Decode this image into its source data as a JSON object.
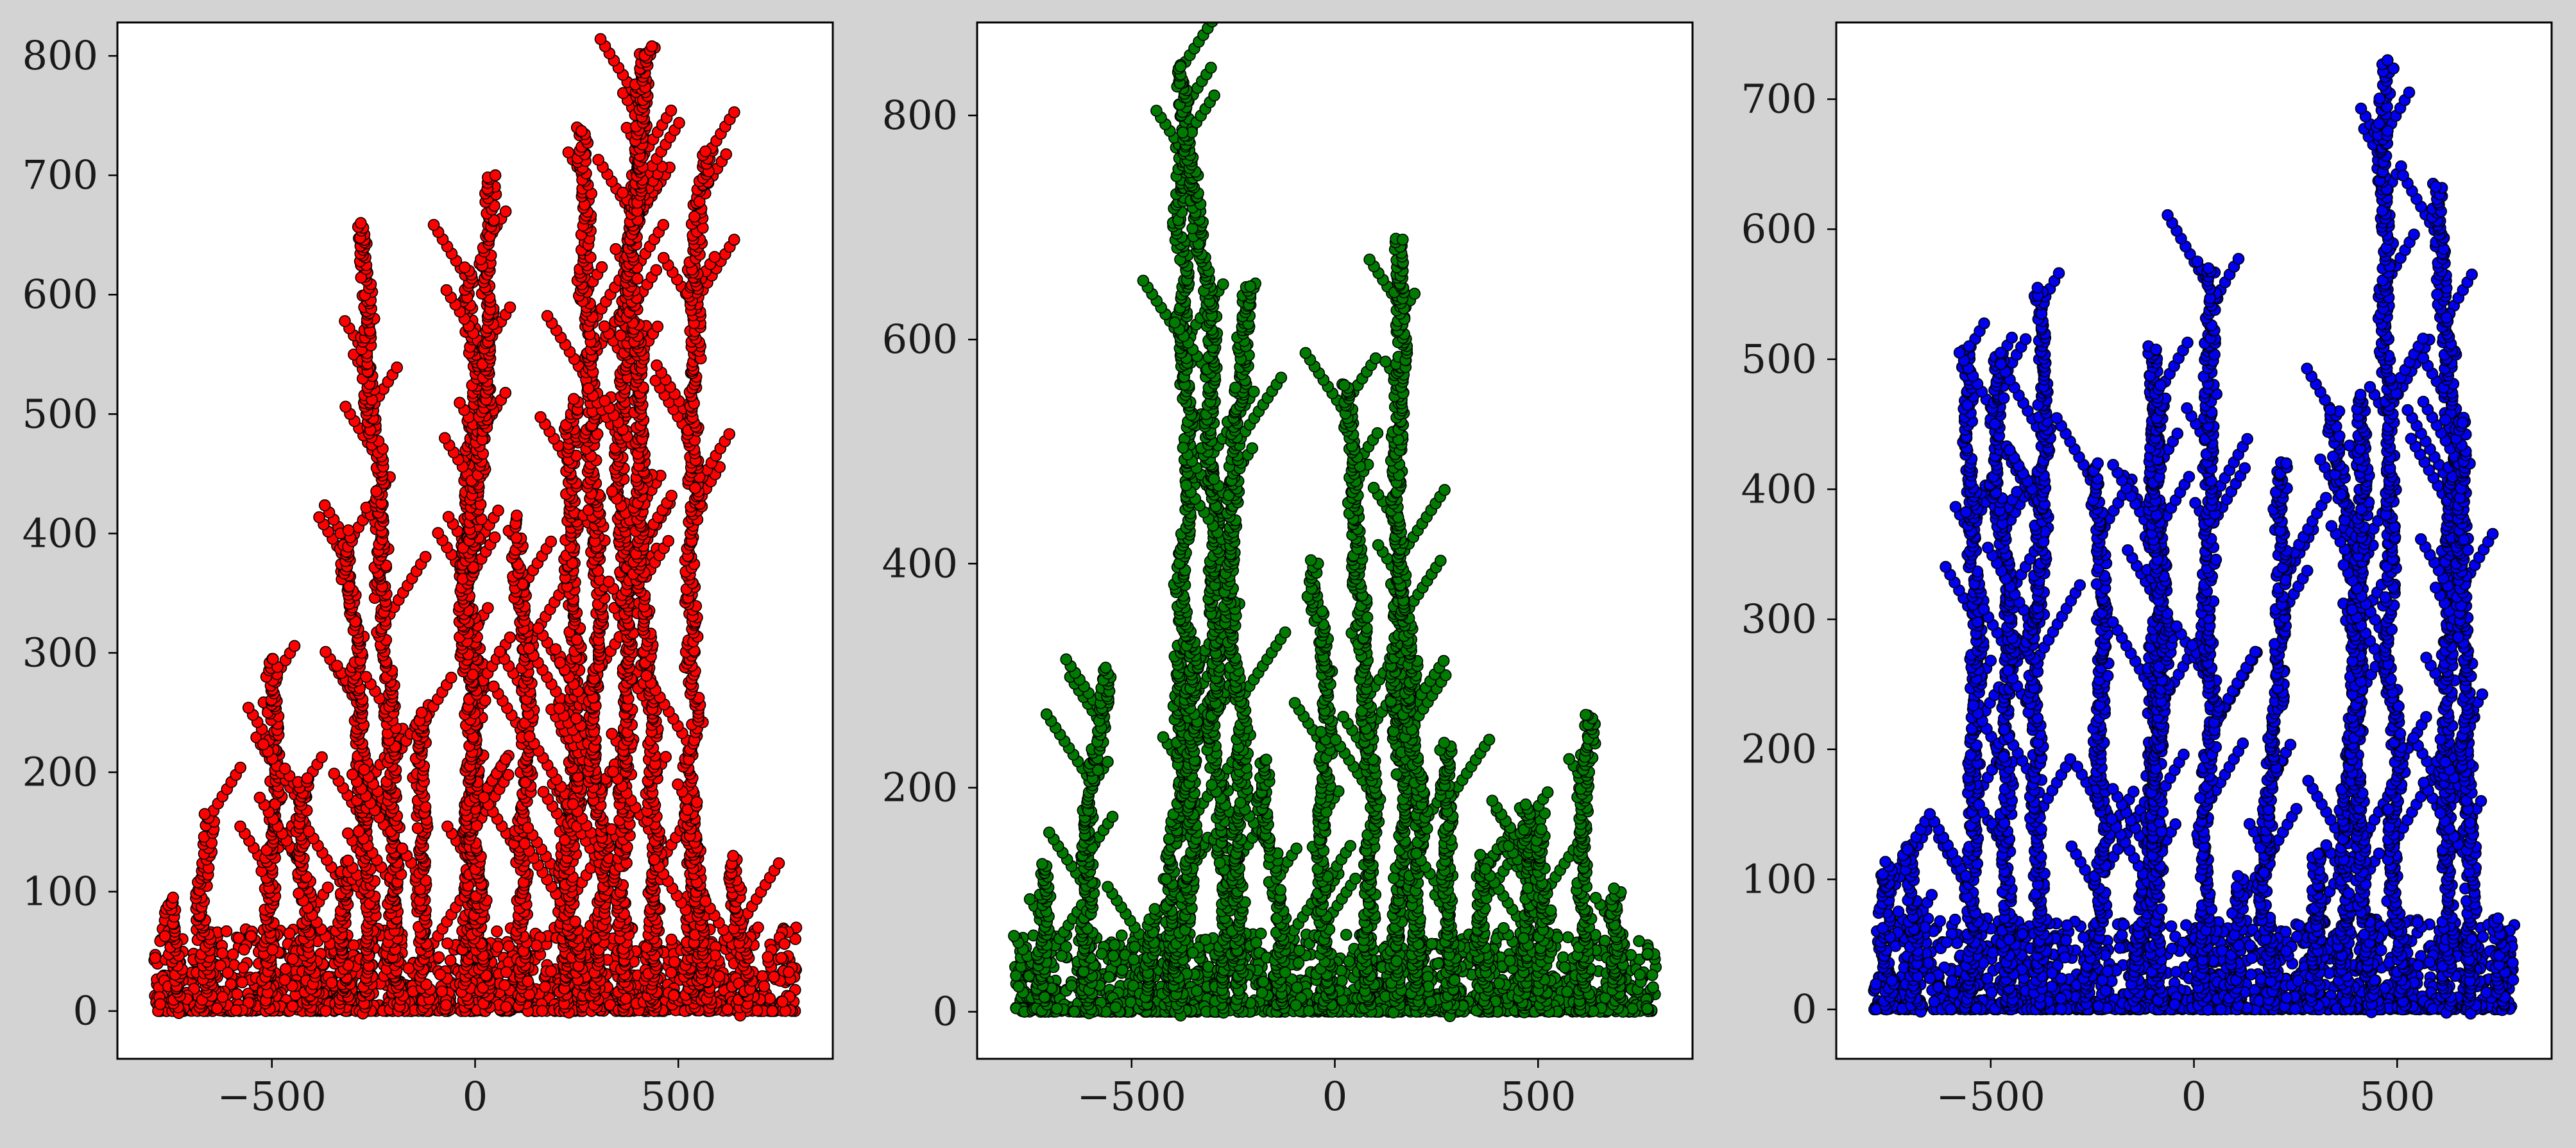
{
  "figure": {
    "background": "#d3d3d3"
  },
  "chart_data": [
    {
      "type": "scatter",
      "title": "",
      "xlabel": "",
      "ylabel": "",
      "xlim": [
        -880,
        880
      ],
      "ylim": [
        -40,
        828
      ],
      "xticks": [
        -500,
        0,
        500
      ],
      "xtick_labels": [
        "−500",
        "0",
        "500"
      ],
      "yticks": [
        0,
        100,
        200,
        300,
        400,
        500,
        600,
        700,
        800
      ],
      "ytick_labels": [
        "0",
        "100",
        "200",
        "300",
        "400",
        "500",
        "600",
        "700",
        "800"
      ],
      "grid": false,
      "legend": "none",
      "marker_color": "#ff0000",
      "edge_color": "#000000",
      "branches": [
        {
          "x": -735,
          "top": 95
        },
        {
          "x": -665,
          "top": 165
        },
        {
          "x": -505,
          "top": 295
        },
        {
          "x": -420,
          "top": 195
        },
        {
          "x": -320,
          "top": 125
        },
        {
          "x": -280,
          "top": 400
        },
        {
          "x": -190,
          "top": 660
        },
        {
          "x": -120,
          "top": 250
        },
        {
          "x": -20,
          "top": 620
        },
        {
          "x": 30,
          "top": 700
        },
        {
          "x": 120,
          "top": 415
        },
        {
          "x": 230,
          "top": 195
        },
        {
          "x": 270,
          "top": 510
        },
        {
          "x": 290,
          "top": 740
        },
        {
          "x": 370,
          "top": 780
        },
        {
          "x": 440,
          "top": 808
        },
        {
          "x": 530,
          "top": 720
        },
        {
          "x": 565,
          "top": 175
        },
        {
          "x": 660,
          "top": 130
        }
      ]
    },
    {
      "type": "scatter",
      "title": "",
      "xlabel": "",
      "ylabel": "",
      "xlim": [
        -880,
        880
      ],
      "ylim": [
        -42,
        883
      ],
      "xticks": [
        -500,
        0,
        500
      ],
      "xtick_labels": [
        "−500",
        "0",
        "500"
      ],
      "yticks": [
        0,
        200,
        400,
        600,
        800
      ],
      "ytick_labels": [
        "0",
        "200",
        "400",
        "600",
        "800"
      ],
      "grid": false,
      "legend": "none",
      "marker_color": "#007a00",
      "edge_color": "#000000",
      "branches": [
        {
          "x": -730,
          "top": 130
        },
        {
          "x": -610,
          "top": 305
        },
        {
          "x": -470,
          "top": 90
        },
        {
          "x": -420,
          "top": 330
        },
        {
          "x": -380,
          "top": 845
        },
        {
          "x": -280,
          "top": 785
        },
        {
          "x": -230,
          "top": 650
        },
        {
          "x": -140,
          "top": 225
        },
        {
          "x": -20,
          "top": 400
        },
        {
          "x": 70,
          "top": 560
        },
        {
          "x": 150,
          "top": 385
        },
        {
          "x": 210,
          "top": 690
        },
        {
          "x": 290,
          "top": 240
        },
        {
          "x": 380,
          "top": 140
        },
        {
          "x": 460,
          "top": 185
        },
        {
          "x": 520,
          "top": 160
        },
        {
          "x": 600,
          "top": 265
        },
        {
          "x": 700,
          "top": 110
        }
      ]
    },
    {
      "type": "scatter",
      "title": "",
      "xlabel": "",
      "ylabel": "",
      "xlim": [
        -880,
        880
      ],
      "ylim": [
        -38,
        759
      ],
      "xticks": [
        -500,
        0,
        500
      ],
      "xtick_labels": [
        "−500",
        "0",
        "500"
      ],
      "yticks": [
        0,
        100,
        200,
        300,
        400,
        500,
        600,
        700
      ],
      "ytick_labels": [
        "0",
        "100",
        "200",
        "300",
        "400",
        "500",
        "600",
        "700"
      ],
      "grid": false,
      "legend": "none",
      "marker_color": "#0000ee",
      "edge_color": "#000000",
      "branches": [
        {
          "x": -760,
          "top": 110
        },
        {
          "x": -680,
          "top": 125
        },
        {
          "x": -560,
          "top": 510
        },
        {
          "x": -450,
          "top": 505
        },
        {
          "x": -380,
          "top": 555
        },
        {
          "x": -270,
          "top": 420
        },
        {
          "x": -150,
          "top": 510
        },
        {
          "x": -80,
          "top": 480
        },
        {
          "x": 20,
          "top": 570
        },
        {
          "x": 100,
          "top": 100
        },
        {
          "x": 190,
          "top": 420
        },
        {
          "x": 300,
          "top": 120
        },
        {
          "x": 380,
          "top": 460
        },
        {
          "x": 450,
          "top": 470
        },
        {
          "x": 520,
          "top": 730
        },
        {
          "x": 620,
          "top": 635
        },
        {
          "x": 680,
          "top": 455
        },
        {
          "x": 760,
          "top": 70
        }
      ]
    }
  ]
}
